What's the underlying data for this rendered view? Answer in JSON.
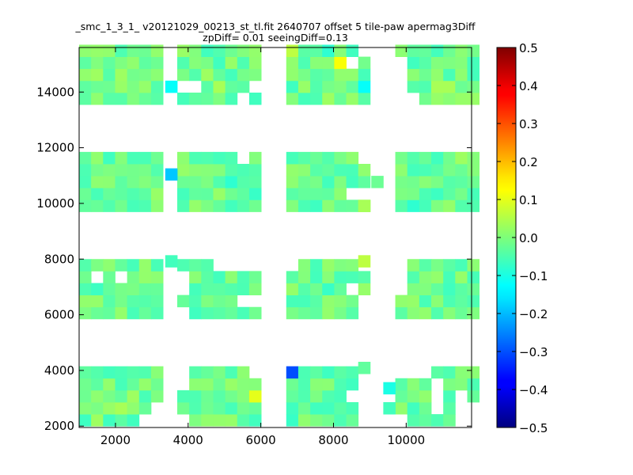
{
  "chart_data": {
    "type": "heatmap",
    "title_lines": [
      "_smc_1_3_1_ v20121029_00213_st_tl.fit 2640707 offset 5 tile-paw apermag3Diff",
      "zpDiff= 0.01 seeingDiff=0.13"
    ],
    "xlabel": "",
    "ylabel": "",
    "xlim": [
      1000,
      11800
    ],
    "ylim": [
      1950,
      15600
    ],
    "xticks": [
      2000,
      4000,
      6000,
      8000,
      10000
    ],
    "yticks": [
      2000,
      4000,
      6000,
      8000,
      10000,
      12000,
      14000
    ],
    "colorbar": {
      "colormap": "jet",
      "range": [
        -0.5,
        0.5
      ],
      "ticks": [
        "0.5",
        "0.4",
        "0.3",
        "0.2",
        "0.1",
        "0.0",
        "−0.1",
        "−0.2",
        "−0.3",
        "−0.4",
        "−0.5"
      ]
    },
    "grid": false,
    "cell_size": {
      "x": 330,
      "y": 430
    },
    "default_cell_value": -0.02,
    "column_groups": [
      {
        "x_start": 1000,
        "cols": 7
      },
      {
        "x_start": 3700,
        "cols": 7
      },
      {
        "x_start": 6700,
        "cols": 7
      },
      {
        "x_start": 9700,
        "cols": 7
      }
    ],
    "row_groups": [
      {
        "y_start": 2000,
        "rows": 5
      },
      {
        "y_start": 5850,
        "rows": 5
      },
      {
        "y_start": 9700,
        "rows": 5
      },
      {
        "y_start": 13550,
        "rows": 5
      }
    ],
    "missing_cells": [
      [
        1,
        3,
        6,
        1
      ],
      [
        1,
        3,
        5,
        0
      ],
      [
        1,
        3,
        1,
        1
      ],
      [
        1,
        3,
        0,
        1
      ],
      [
        1,
        2,
        5,
        4
      ],
      [
        2,
        3,
        6,
        4
      ],
      [
        2,
        3,
        5,
        3
      ],
      [
        2,
        2,
        5,
        1
      ],
      [
        2,
        2,
        6,
        1
      ],
      [
        2,
        2,
        6,
        4
      ],
      [
        3,
        3,
        1,
        0
      ],
      [
        3,
        3,
        0,
        0
      ],
      [
        3,
        3,
        0,
        1
      ],
      [
        3,
        3,
        0,
        2
      ],
      [
        3,
        3,
        0,
        3
      ],
      [
        1,
        1,
        3,
        4
      ],
      [
        1,
        1,
        4,
        4
      ],
      [
        1,
        1,
        5,
        4
      ],
      [
        1,
        1,
        6,
        4
      ],
      [
        1,
        1,
        5,
        1
      ],
      [
        1,
        1,
        6,
        1
      ],
      [
        1,
        1,
        0,
        2
      ],
      [
        1,
        1,
        0,
        3
      ],
      [
        1,
        1,
        0,
        0
      ],
      [
        2,
        1,
        6,
        4
      ],
      [
        2,
        1,
        6,
        0
      ],
      [
        2,
        1,
        6,
        1
      ],
      [
        2,
        1,
        0,
        4
      ],
      [
        2,
        1,
        5,
        2
      ],
      [
        0,
        1,
        1,
        3
      ],
      [
        0,
        1,
        3,
        3
      ],
      [
        3,
        1,
        0,
        4
      ],
      [
        3,
        1,
        0,
        3
      ],
      [
        3,
        1,
        0,
        2
      ],
      [
        0,
        0,
        6,
        0
      ],
      [
        0,
        0,
        5,
        0
      ],
      [
        0,
        0,
        6,
        1
      ],
      [
        1,
        0,
        0,
        4
      ],
      [
        1,
        0,
        0,
        3
      ],
      [
        1,
        0,
        0,
        0
      ],
      [
        1,
        0,
        6,
        4
      ],
      [
        2,
        0,
        5,
        2
      ],
      [
        2,
        0,
        6,
        0
      ],
      [
        2,
        0,
        6,
        1
      ],
      [
        2,
        0,
        6,
        2
      ],
      [
        2,
        0,
        6,
        3
      ],
      [
        2,
        0,
        6,
        4
      ],
      [
        3,
        0,
        0,
        4
      ],
      [
        3,
        0,
        1,
        4
      ],
      [
        3,
        0,
        2,
        4
      ],
      [
        3,
        0,
        0,
        0
      ],
      [
        3,
        0,
        3,
        3
      ],
      [
        3,
        0,
        3,
        2
      ],
      [
        3,
        0,
        3,
        1
      ],
      [
        3,
        0,
        5,
        0
      ],
      [
        3,
        0,
        5,
        1
      ],
      [
        3,
        0,
        5,
        2
      ],
      [
        3,
        0,
        6,
        1
      ],
      [
        3,
        0,
        6,
        0
      ]
    ],
    "extra_cells": [
      {
        "x": 3370,
        "y": 13980,
        "value": -0.12
      },
      {
        "x": 3370,
        "y": 10830,
        "value": -0.18
      },
      {
        "x": 8680,
        "y": 9700,
        "value": 0.04
      },
      {
        "x": 9040,
        "y": 10560,
        "value": -0.02
      },
      {
        "x": 3370,
        "y": 7710,
        "value": -0.06
      },
      {
        "x": 8680,
        "y": 7710,
        "value": 0.06
      },
      {
        "x": 8680,
        "y": 3880,
        "value": -0.03
      },
      {
        "x": 9370,
        "y": 3150,
        "value": -0.1
      },
      {
        "x": 9370,
        "y": 2430,
        "value": -0.06
      }
    ],
    "value_cells": [
      {
        "x": 6700,
        "y": 3880,
        "value": -0.3
      },
      {
        "x": 5680,
        "y": 2860,
        "value": 0.1
      },
      {
        "x": 8030,
        "y": 14820,
        "value": 0.12
      },
      {
        "x": 7700,
        "y": 15260,
        "value": -0.08
      },
      {
        "x": 8680,
        "y": 13980,
        "value": -0.12
      },
      {
        "x": 7030,
        "y": 14820,
        "value": -0.05
      },
      {
        "x": 6700,
        "y": 15260,
        "value": 0.06
      },
      {
        "x": 4040,
        "y": 10130,
        "value": -0.03
      },
      {
        "x": 5040,
        "y": 10560,
        "value": -0.08
      },
      {
        "x": 5040,
        "y": 9700,
        "value": -0.06
      },
      {
        "x": 5700,
        "y": 10130,
        "value": -0.07
      },
      {
        "x": 7700,
        "y": 10560,
        "value": -0.06
      },
      {
        "x": 10030,
        "y": 9700,
        "value": -0.08
      },
      {
        "x": 7700,
        "y": 2430,
        "value": -0.06
      },
      {
        "x": 8030,
        "y": 2000,
        "value": -0.05
      },
      {
        "x": 7030,
        "y": 3430,
        "value": -0.05
      },
      {
        "x": 6700,
        "y": 2000,
        "value": -0.07
      },
      {
        "x": 4700,
        "y": 7280,
        "value": -0.06
      },
      {
        "x": 5380,
        "y": 7280,
        "value": -0.05
      },
      {
        "x": 7700,
        "y": 6850,
        "value": -0.07
      },
      {
        "x": 4040,
        "y": 6420,
        "value": -0.05
      },
      {
        "x": 1330,
        "y": 2000,
        "value": 0.03
      },
      {
        "x": 1970,
        "y": 2430,
        "value": 0.04
      },
      {
        "x": 2320,
        "y": 2860,
        "value": 0.03
      },
      {
        "x": 4700,
        "y": 14120,
        "value": 0.04
      },
      {
        "x": 4370,
        "y": 14550,
        "value": 0.03
      },
      {
        "x": 10700,
        "y": 14120,
        "value": 0.04
      },
      {
        "x": 11030,
        "y": 14120,
        "value": 0.04
      },
      {
        "x": 1330,
        "y": 14550,
        "value": 0.03
      },
      {
        "x": 2000,
        "y": 14550,
        "value": 0.03
      },
      {
        "x": 2650,
        "y": 14120,
        "value": 0.02
      },
      {
        "x": 7700,
        "y": 13550,
        "value": 0.03
      },
      {
        "x": 10030,
        "y": 3880,
        "value": 0.03
      },
      {
        "x": 11370,
        "y": 11350,
        "value": 0.03
      },
      {
        "x": 2650,
        "y": 7710,
        "value": 0.02
      },
      {
        "x": 10700,
        "y": 10990,
        "value": -0.04
      },
      {
        "x": 1970,
        "y": 13550,
        "value": -0.04
      },
      {
        "x": 8030,
        "y": 3430,
        "value": -0.05
      },
      {
        "x": 6380,
        "y": 6850,
        "value": -0.03
      }
    ]
  }
}
